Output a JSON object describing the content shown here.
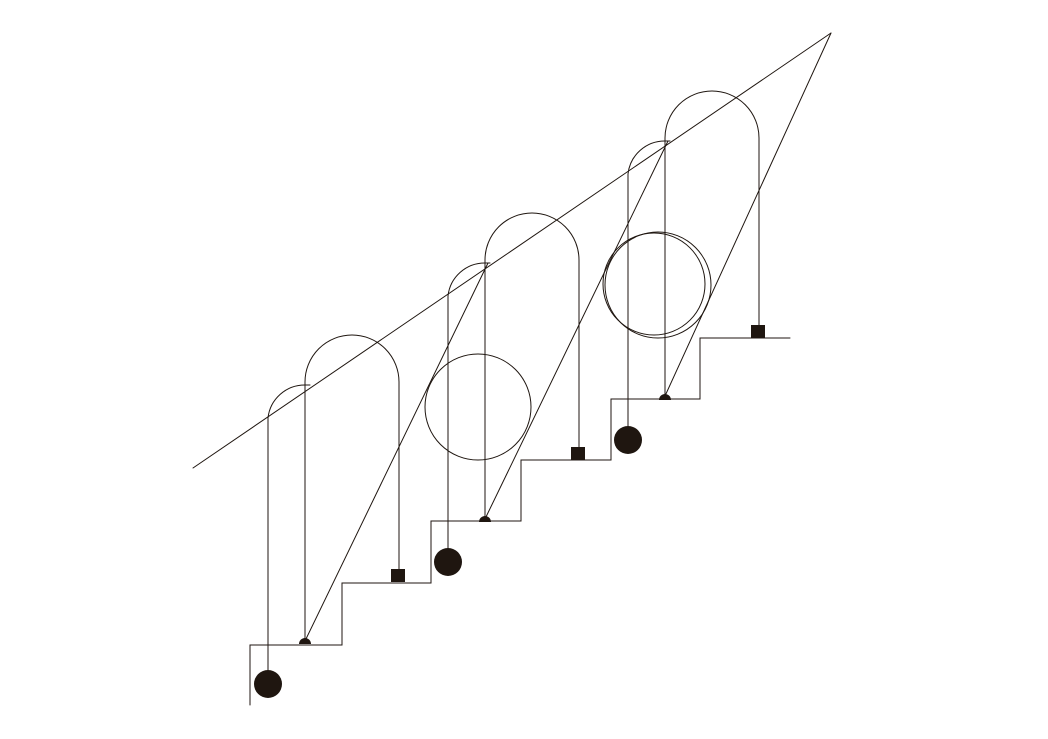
{
  "diagram": {
    "stroke_color": "#1f1610",
    "fill_color": "#1f1610",
    "background": "#ffffff",
    "units": 3,
    "shapes": [
      "staircase",
      "diagonal-line",
      "arch",
      "circle",
      "pendulum-line",
      "square-weight",
      "round-weight",
      "half-disc-pivot"
    ]
  }
}
